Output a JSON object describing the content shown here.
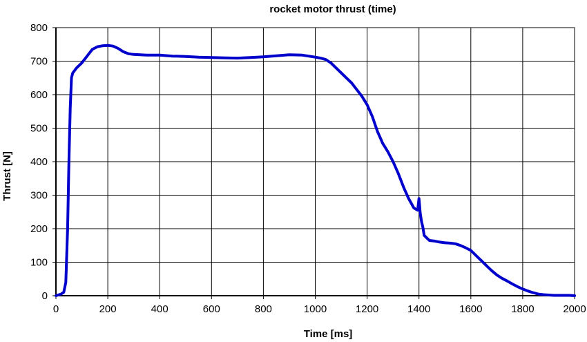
{
  "chart_data": {
    "type": "line",
    "title": "rocket motor thrust (time)",
    "xlabel": "Time [ms]",
    "ylabel": "Thrust [N]",
    "xlim": [
      0,
      2000
    ],
    "ylim": [
      0,
      800
    ],
    "xticks": [
      0,
      200,
      400,
      600,
      800,
      1000,
      1200,
      1400,
      1600,
      1800,
      2000
    ],
    "yticks": [
      0,
      100,
      200,
      300,
      400,
      500,
      600,
      700,
      800
    ],
    "grid": true,
    "legend": "none",
    "series": [
      {
        "color": "#0000cc",
        "x": [
          0,
          20,
          30,
          38,
          45,
          50,
          55,
          60,
          65,
          70,
          80,
          100,
          120,
          140,
          160,
          180,
          200,
          220,
          240,
          260,
          280,
          300,
          350,
          400,
          450,
          500,
          550,
          600,
          650,
          700,
          750,
          800,
          850,
          900,
          950,
          1000,
          1020,
          1040,
          1060,
          1080,
          1100,
          1120,
          1140,
          1160,
          1180,
          1200,
          1220,
          1240,
          1260,
          1280,
          1300,
          1320,
          1340,
          1360,
          1380,
          1395,
          1400,
          1405,
          1410,
          1415,
          1420,
          1440,
          1460,
          1480,
          1500,
          1520,
          1540,
          1560,
          1580,
          1600,
          1620,
          1640,
          1660,
          1680,
          1700,
          1720,
          1740,
          1760,
          1780,
          1800,
          1820,
          1840,
          1860,
          1880,
          1900,
          1920,
          1940,
          1960,
          1980,
          2000
        ],
        "values": [
          0,
          5,
          10,
          40,
          200,
          400,
          560,
          650,
          665,
          670,
          680,
          695,
          715,
          735,
          743,
          746,
          747,
          745,
          738,
          728,
          722,
          720,
          718,
          718,
          715,
          714,
          712,
          711,
          710,
          709,
          711,
          713,
          716,
          719,
          718,
          712,
          709,
          705,
          695,
          680,
          665,
          650,
          635,
          615,
          595,
          570,
          535,
          490,
          455,
          430,
          400,
          365,
          325,
          290,
          262,
          255,
          290,
          245,
          220,
          205,
          180,
          165,
          163,
          160,
          158,
          157,
          155,
          150,
          143,
          135,
          120,
          105,
          90,
          75,
          62,
          52,
          44,
          35,
          27,
          20,
          14,
          9,
          5,
          3,
          2,
          1,
          1,
          1,
          1,
          0
        ]
      }
    ]
  }
}
